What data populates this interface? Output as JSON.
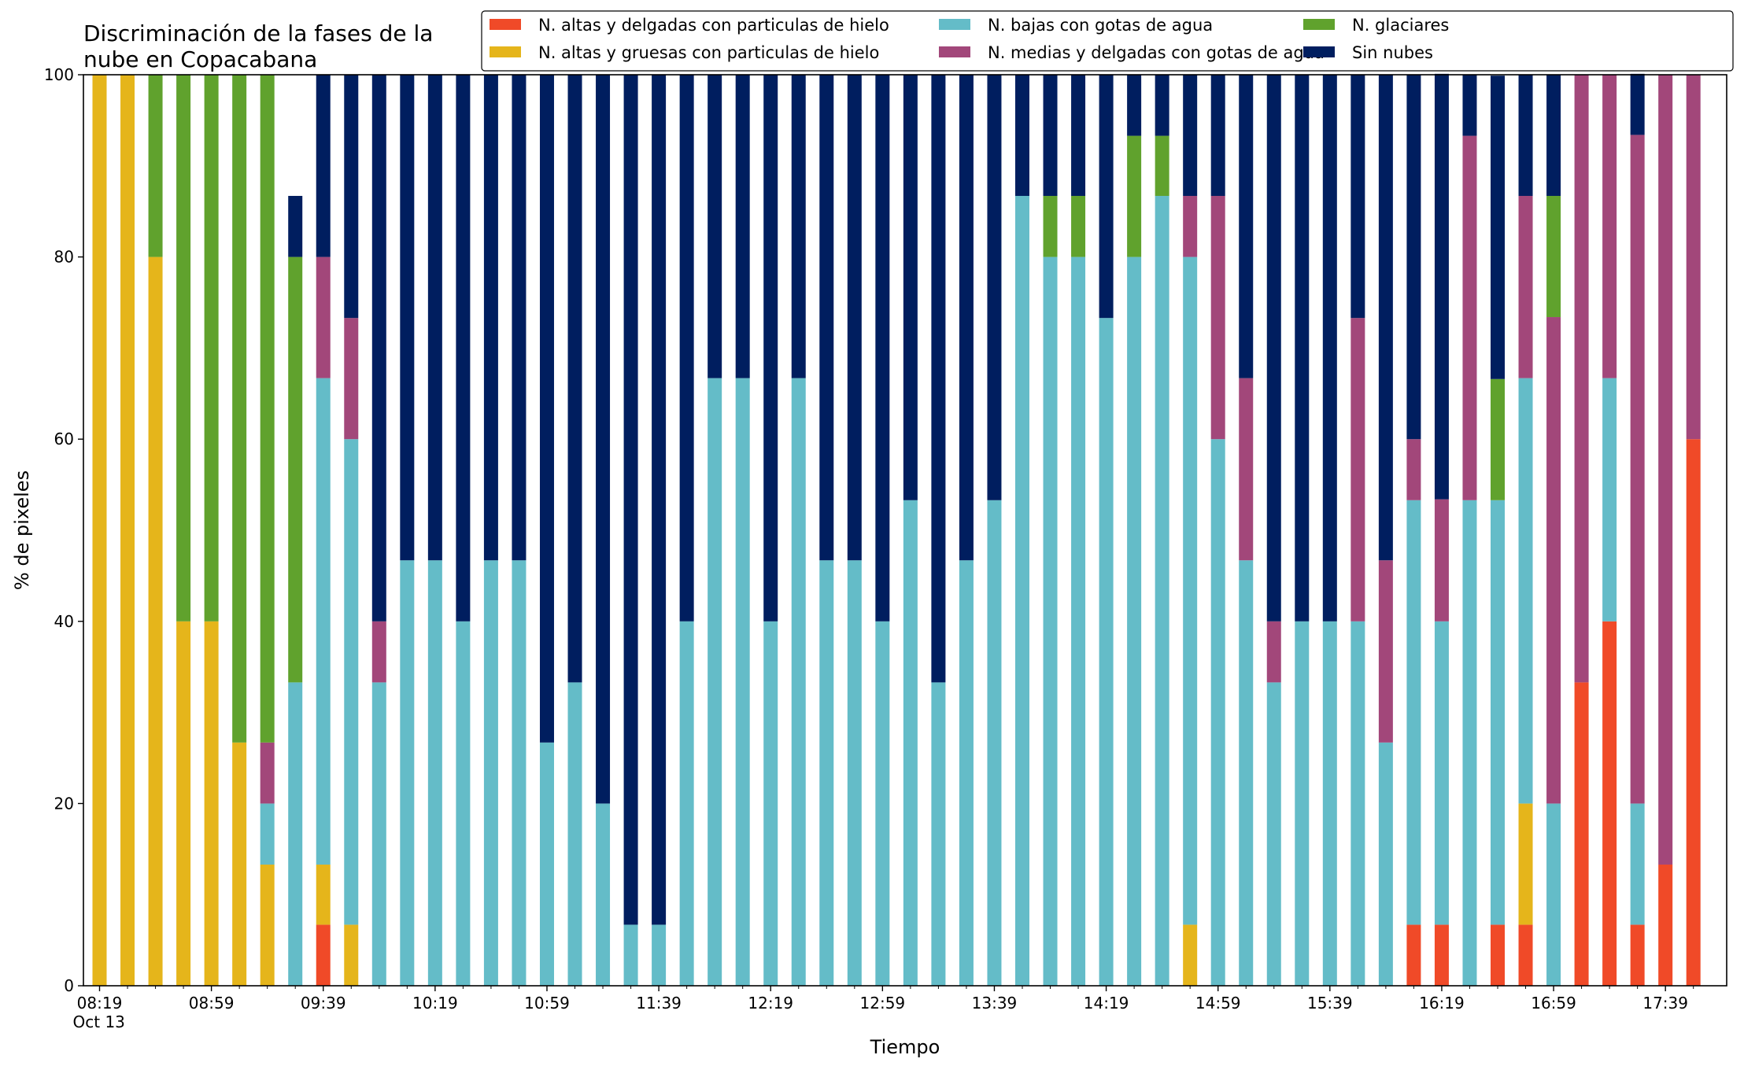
{
  "chart_data": {
    "type": "bar",
    "stacked": true,
    "title": "Discriminación de la fases de la\nnube en Copacabana",
    "xlabel": "Tiempo",
    "ylabel": "% de pixeles",
    "ylim": [
      0,
      100
    ],
    "yticks": [
      0,
      20,
      40,
      60,
      80,
      100
    ],
    "grid": false,
    "legend_position": "top-right",
    "legend_columns": 3,
    "x_start": "08:19",
    "x_step_minutes": 10,
    "xtick_labels": [
      "08:19\nOct 13",
      "08:59",
      "09:39",
      "10:19",
      "10:59",
      "11:39",
      "12:19",
      "12:59",
      "13:39",
      "14:19",
      "14:59",
      "15:39",
      "16:19",
      "16:59",
      "17:39"
    ],
    "series": [
      {
        "name": "N. altas y delgadas con particulas de hielo",
        "color": "#f04a28",
        "values": [
          0,
          0,
          0,
          0,
          0,
          0,
          0,
          0,
          6.7,
          0,
          0,
          0,
          0,
          0,
          0,
          0,
          0,
          0,
          0,
          0,
          0,
          0,
          0,
          0,
          0,
          0,
          0,
          0,
          0,
          0,
          0,
          0,
          0,
          0,
          0,
          0,
          0,
          0,
          0,
          0,
          0,
          0,
          0,
          0,
          0,
          0,
          0,
          6.7,
          6.7,
          0,
          6.7,
          6.7,
          0,
          33.3,
          40,
          6.7,
          13.3,
          60
        ]
      },
      {
        "name": "N. altas y gruesas con particulas de hielo",
        "color": "#e5b51b",
        "values": [
          100,
          100,
          80,
          40,
          40,
          26.7,
          13.3,
          0,
          6.6,
          6.7,
          0,
          0,
          0,
          0,
          0,
          0,
          0,
          0,
          0,
          0,
          0,
          0,
          0,
          0,
          0,
          0,
          0,
          0,
          0,
          0,
          0,
          0,
          0,
          0,
          0,
          0,
          0,
          0,
          0,
          6.7,
          0,
          0,
          0,
          0,
          0,
          0,
          0,
          0,
          0,
          0,
          0,
          13.3,
          0,
          0,
          0,
          0,
          0,
          0
        ]
      },
      {
        "name": "N. bajas con gotas de agua",
        "color": "#64bcc8",
        "values": [
          0,
          0,
          0,
          0,
          0,
          0,
          6.7,
          33.3,
          53.4,
          53.3,
          33.3,
          46.7,
          46.7,
          40,
          46.7,
          46.7,
          26.7,
          33.3,
          20,
          6.7,
          6.7,
          40,
          66.7,
          66.7,
          40,
          66.7,
          46.7,
          46.7,
          40,
          53.3,
          33.3,
          46.7,
          53.3,
          86.7,
          80,
          80,
          73.3,
          80,
          86.7,
          73.3,
          60,
          46.7,
          33.3,
          40,
          40,
          40,
          26.7,
          46.6,
          33.3,
          53.3,
          46.6,
          46.7,
          20,
          0,
          26.7,
          13.3,
          0,
          0
        ]
      },
      {
        "name": "N. medias y delgadas con gotas de agua",
        "color": "#a2477a",
        "values": [
          0,
          0,
          0,
          0,
          0,
          0,
          6.7,
          0,
          13.3,
          13.3,
          6.7,
          0,
          0,
          0,
          0,
          0,
          0,
          0,
          0,
          0,
          0,
          0,
          0,
          0,
          0,
          0,
          0,
          0,
          0,
          0,
          0,
          0,
          0,
          0,
          0,
          0,
          0,
          0,
          0,
          6.7,
          26.7,
          20,
          6.7,
          0,
          0,
          33.3,
          20,
          6.7,
          13.4,
          40,
          0,
          20,
          53.4,
          66.7,
          33.3,
          73.4,
          86.7,
          40
        ]
      },
      {
        "name": "N. glaciares",
        "color": "#60a22d",
        "values": [
          0,
          0,
          20,
          60,
          60,
          73.3,
          73.3,
          46.7,
          0,
          0,
          0,
          0,
          0,
          0,
          0,
          0,
          0,
          0,
          0,
          0,
          0,
          0,
          0,
          0,
          0,
          0,
          0,
          0,
          0,
          0,
          0,
          0,
          0,
          0,
          6.7,
          6.7,
          0,
          13.3,
          6.6,
          0,
          0,
          0,
          0,
          0,
          0,
          0,
          0,
          0,
          0,
          0,
          13.3,
          0,
          13.3,
          0,
          0,
          0,
          0,
          0
        ]
      },
      {
        "name": "Sin nubes",
        "color": "#001e5f",
        "values": [
          0,
          0,
          0,
          0,
          0,
          0,
          0,
          6.7,
          20,
          26.7,
          60,
          53.3,
          53.3,
          60,
          53.3,
          53.3,
          73.3,
          66.7,
          80,
          93.3,
          93.3,
          60,
          33.3,
          33.3,
          60,
          33.3,
          53.3,
          53.3,
          60,
          46.7,
          66.7,
          53.3,
          46.7,
          13.3,
          13.3,
          13.3,
          26.7,
          6.7,
          6.7,
          13.3,
          13.3,
          33.3,
          60,
          60,
          60,
          26.7,
          53.3,
          40,
          46.7,
          6.7,
          33.3,
          13.3,
          13.3,
          0,
          0,
          6.7,
          0,
          0
        ]
      }
    ]
  }
}
